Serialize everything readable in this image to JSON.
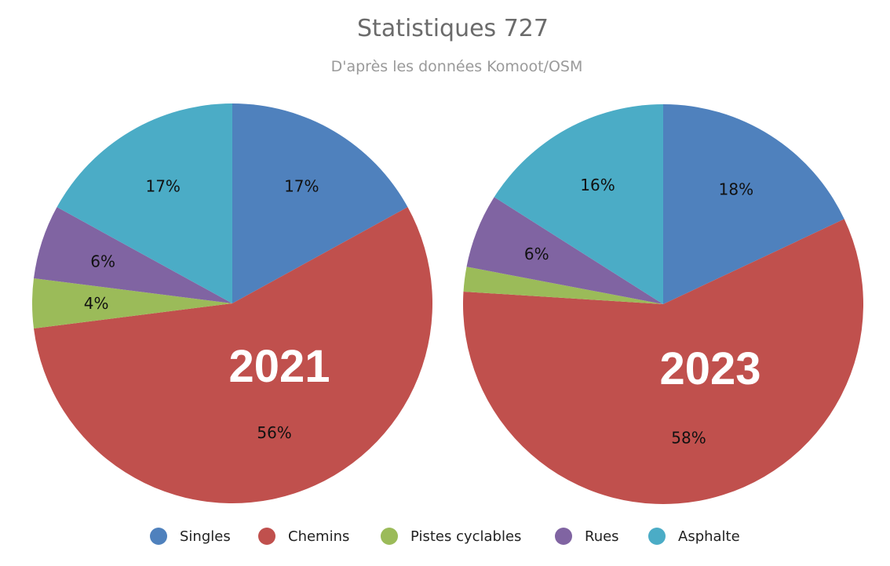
{
  "chart_data": {
    "type": "pie",
    "title": "Statistiques 727",
    "subtitle": "D'après les données Komoot/OSM",
    "categories": [
      "Singles",
      "Chemins",
      "Pistes cyclables",
      "Rues",
      "Asphalte"
    ],
    "colors": [
      "#4f81bd",
      "#c0504d",
      "#9bbb59",
      "#8064a2",
      "#4bacc6"
    ],
    "pies": [
      {
        "year": "2021",
        "values": [
          17,
          56,
          4,
          6,
          17
        ],
        "labels": [
          "17%",
          "56%",
          "4%",
          "6%",
          "17%"
        ]
      },
      {
        "year": "2023",
        "values": [
          18,
          58,
          2,
          6,
          16
        ],
        "labels": [
          "18%",
          "58%",
          "",
          "6%",
          "16%"
        ]
      }
    ],
    "legend_position": "bottom"
  }
}
